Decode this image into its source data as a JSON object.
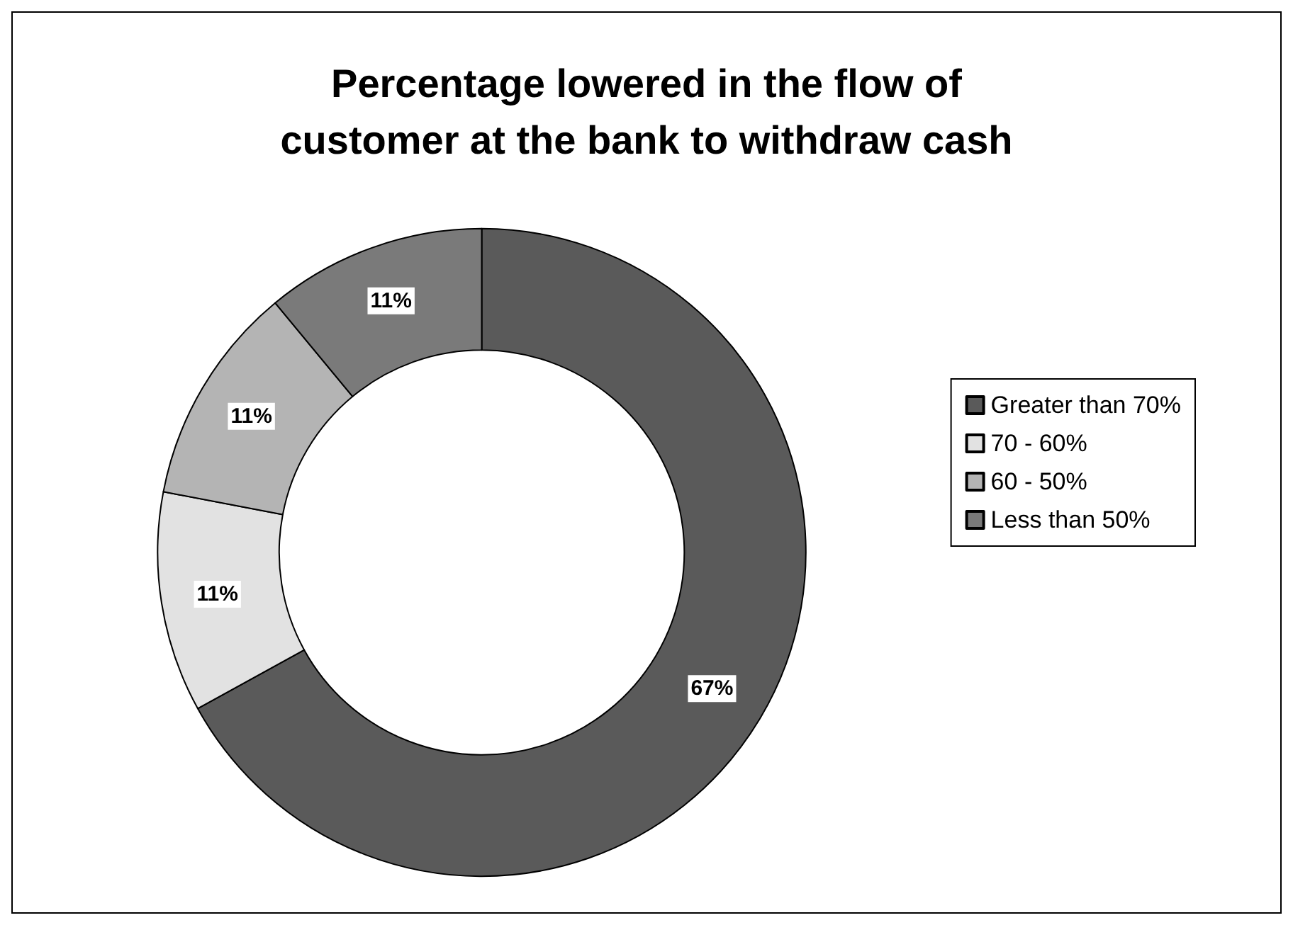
{
  "chart_data": {
    "type": "donut",
    "title": "Percentage lowered in the flow of\ncustomer at the bank to withdraw cash",
    "categories": [
      "Greater than 70%",
      "70 - 60%",
      "60 - 50%",
      "Less than 50%"
    ],
    "values": [
      67,
      11,
      11,
      11
    ],
    "colors": [
      "#5a5a5a",
      "#e2e2e2",
      "#b4b4b4",
      "#7a7a7a"
    ],
    "value_labels": [
      "67%",
      "11%",
      "11%",
      "11%"
    ],
    "legend": "right"
  }
}
